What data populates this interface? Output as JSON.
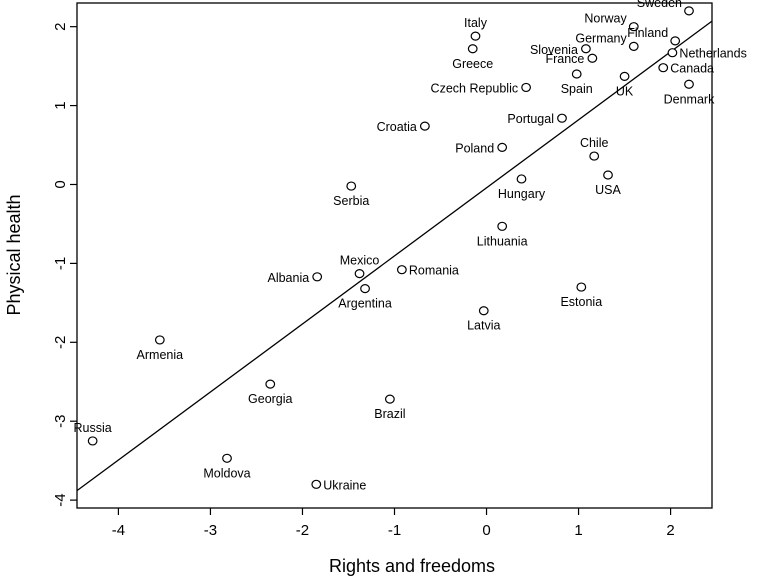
{
  "chart_data": {
    "type": "scatter",
    "xlabel": "Rights and freedoms",
    "ylabel": "Physical health",
    "xlim": [
      -4.45,
      2.45
    ],
    "ylim": [
      -4.1,
      2.3
    ],
    "x_ticks": [
      -4,
      -3,
      -2,
      -1,
      0,
      1,
      2
    ],
    "y_ticks": [
      -4,
      -3,
      -2,
      -1,
      0,
      1,
      2
    ],
    "x_tick_labels": [
      "-4",
      "-3",
      "-2",
      "-1",
      "0",
      "1",
      "2"
    ],
    "y_tick_labels": [
      "-4",
      "-3",
      "-2",
      "-1",
      "0",
      "1",
      "2"
    ],
    "grid": false,
    "regression_line": {
      "x": [
        -4.45,
        2.45
      ],
      "y": [
        -3.88,
        2.07
      ]
    },
    "points": [
      {
        "name": "Sweden",
        "x": 2.2,
        "y": 2.2,
        "label_pos": "above-left"
      },
      {
        "name": "Norway",
        "x": 1.6,
        "y": 2.0,
        "label_pos": "above-left"
      },
      {
        "name": "Finland",
        "x": 2.05,
        "y": 1.82,
        "label_pos": "above-left"
      },
      {
        "name": "Germany",
        "x": 1.6,
        "y": 1.75,
        "label_pos": "above-left"
      },
      {
        "name": "Netherlands",
        "x": 2.02,
        "y": 1.67,
        "label_pos": "right"
      },
      {
        "name": "Slovenia",
        "x": 1.08,
        "y": 1.72,
        "label_pos": "left"
      },
      {
        "name": "France",
        "x": 1.15,
        "y": 1.6,
        "label_pos": "left"
      },
      {
        "name": "Canada",
        "x": 1.92,
        "y": 1.48,
        "label_pos": "right"
      },
      {
        "name": "Spain",
        "x": 0.98,
        "y": 1.4,
        "label_pos": "below"
      },
      {
        "name": "UK",
        "x": 1.5,
        "y": 1.37,
        "label_pos": "below"
      },
      {
        "name": "Denmark",
        "x": 2.2,
        "y": 1.27,
        "label_pos": "below"
      },
      {
        "name": "Italy",
        "x": -0.12,
        "y": 1.88,
        "label_pos": "above"
      },
      {
        "name": "Greece",
        "x": -0.15,
        "y": 1.72,
        "label_pos": "below"
      },
      {
        "name": "Czech Republic",
        "x": 0.43,
        "y": 1.23,
        "label_pos": "left"
      },
      {
        "name": "Portugal",
        "x": 0.82,
        "y": 0.84,
        "label_pos": "left"
      },
      {
        "name": "Croatia",
        "x": -0.67,
        "y": 0.74,
        "label_pos": "left"
      },
      {
        "name": "Poland",
        "x": 0.17,
        "y": 0.47,
        "label_pos": "left"
      },
      {
        "name": "Chile",
        "x": 1.17,
        "y": 0.36,
        "label_pos": "above"
      },
      {
        "name": "USA",
        "x": 1.32,
        "y": 0.12,
        "label_pos": "below"
      },
      {
        "name": "Serbia",
        "x": -1.47,
        "y": -0.02,
        "label_pos": "below"
      },
      {
        "name": "Hungary",
        "x": 0.38,
        "y": 0.07,
        "label_pos": "below"
      },
      {
        "name": "Lithuania",
        "x": 0.17,
        "y": -0.53,
        "label_pos": "below"
      },
      {
        "name": "Mexico",
        "x": -1.38,
        "y": -1.13,
        "label_pos": "above"
      },
      {
        "name": "Albania",
        "x": -1.84,
        "y": -1.17,
        "label_pos": "left"
      },
      {
        "name": "Romania",
        "x": -0.92,
        "y": -1.08,
        "label_pos": "right"
      },
      {
        "name": "Argentina",
        "x": -1.32,
        "y": -1.32,
        "label_pos": "below"
      },
      {
        "name": "Estonia",
        "x": 1.03,
        "y": -1.3,
        "label_pos": "below"
      },
      {
        "name": "Latvia",
        "x": -0.03,
        "y": -1.6,
        "label_pos": "below"
      },
      {
        "name": "Armenia",
        "x": -3.55,
        "y": -1.97,
        "label_pos": "below"
      },
      {
        "name": "Georgia",
        "x": -2.35,
        "y": -2.53,
        "label_pos": "below"
      },
      {
        "name": "Brazil",
        "x": -1.05,
        "y": -2.72,
        "label_pos": "below"
      },
      {
        "name": "Russia",
        "x": -4.28,
        "y": -3.25,
        "label_pos": "above"
      },
      {
        "name": "Moldova",
        "x": -2.82,
        "y": -3.47,
        "label_pos": "below"
      },
      {
        "name": "Ukraine",
        "x": -1.85,
        "y": -3.8,
        "label_pos": "right"
      }
    ]
  }
}
